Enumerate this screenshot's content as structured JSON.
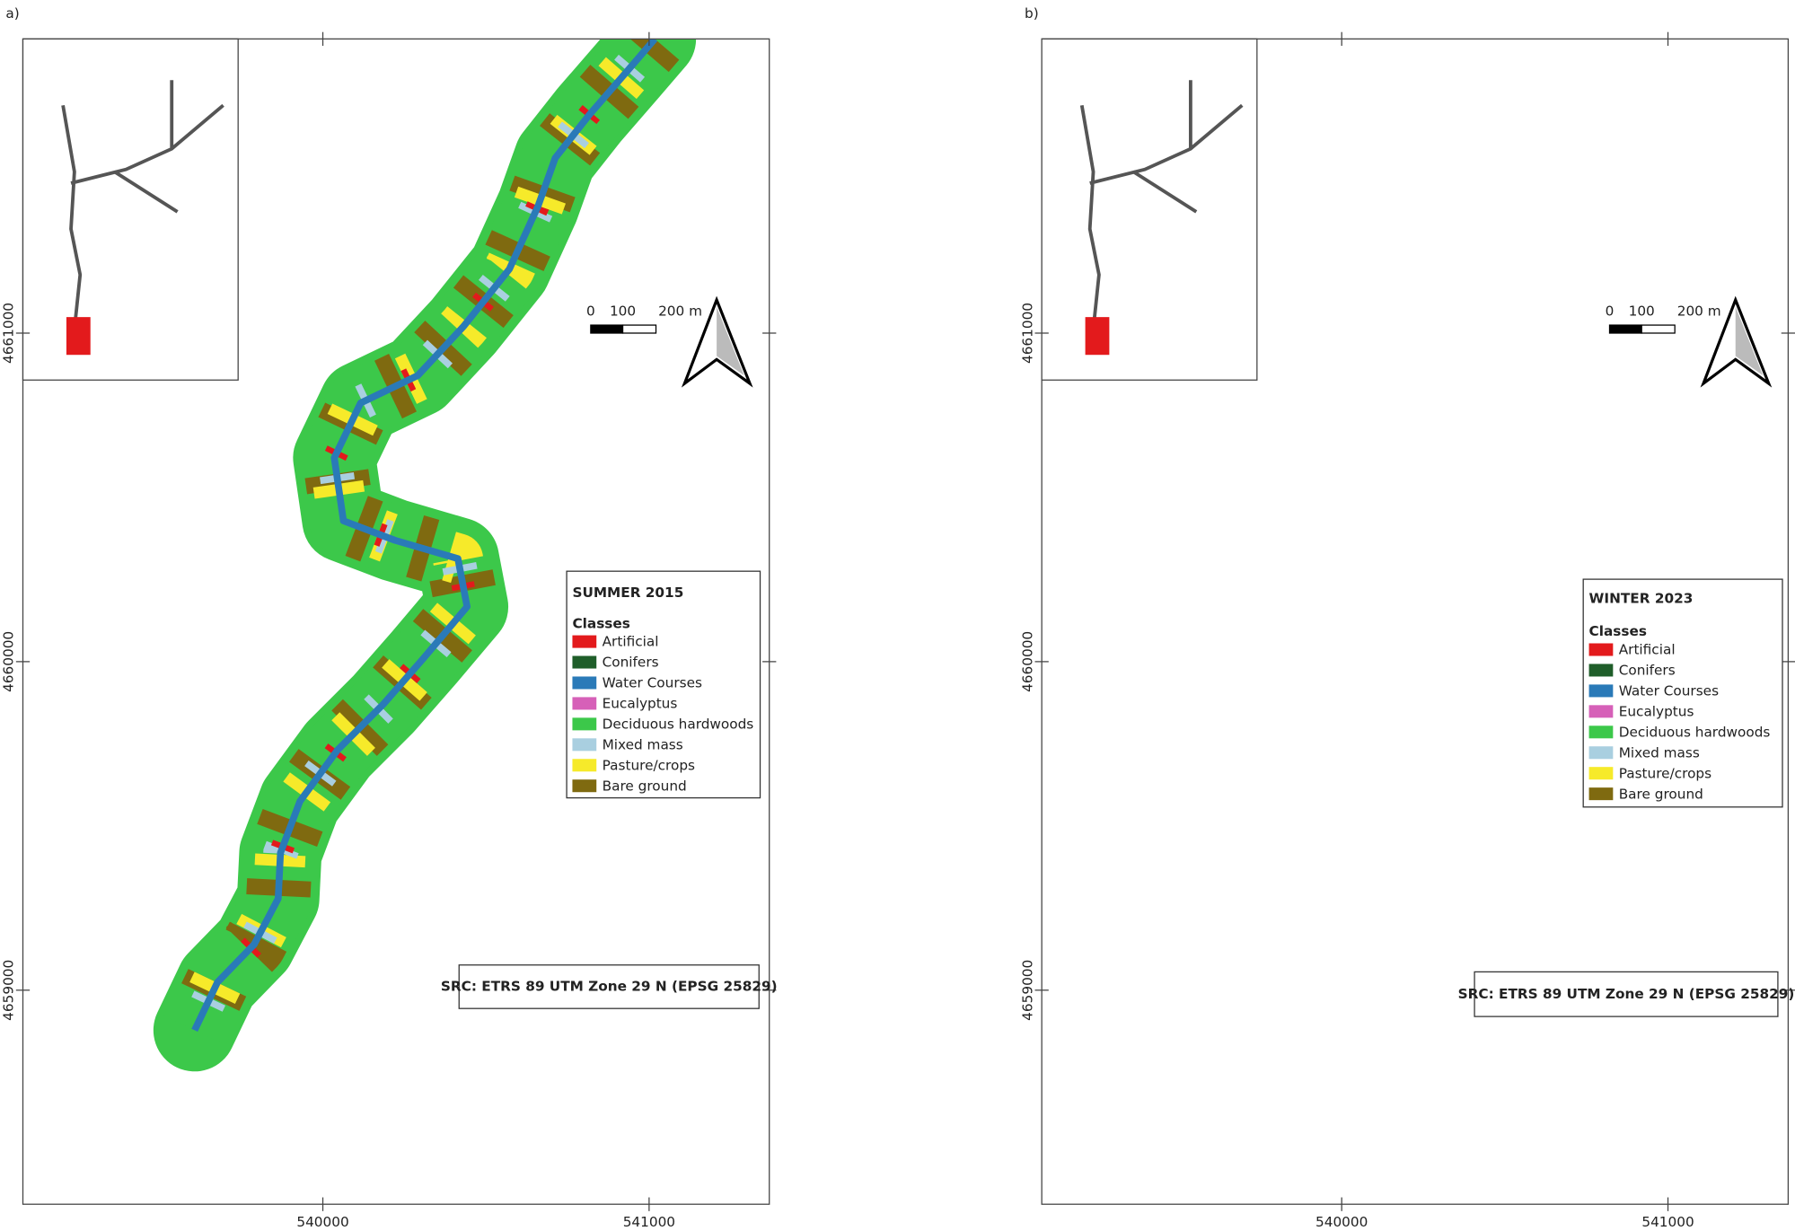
{
  "panels": [
    {
      "label": "a)",
      "title": "SUMMER 2015",
      "legend_heading": "Classes",
      "classes": [
        {
          "name": "Artificial",
          "color": "#e31a1c"
        },
        {
          "name": "Conifers",
          "color": "#1f5e2a"
        },
        {
          "name": "Water Courses",
          "color": "#2a7ab8"
        },
        {
          "name": "Eucalyptus",
          "color": "#d660b8"
        },
        {
          "name": "Deciduous hardwoods",
          "color": "#3cc84a"
        },
        {
          "name": "Mixed mass",
          "color": "#a9cfe0"
        },
        {
          "name": "Pasture/crops",
          "color": "#f6ea2a"
        },
        {
          "name": "Bare ground",
          "color": "#7f6a10"
        }
      ],
      "scale_labels": [
        "0",
        "100",
        "200 m"
      ],
      "crs": "SRC: ETRS 89 UTM Zone 29 N (EPSG 25829)",
      "x_ticks": [
        540000,
        541000
      ],
      "y_ticks": [
        4661000,
        4660000,
        4659000
      ]
    },
    {
      "label": "b)",
      "title": "WINTER 2023",
      "legend_heading": "Classes",
      "classes": [
        {
          "name": "Artificial",
          "color": "#e31a1c"
        },
        {
          "name": "Conifers",
          "color": "#1f5e2a"
        },
        {
          "name": "Water Courses",
          "color": "#2a7ab8"
        },
        {
          "name": "Eucalyptus",
          "color": "#d660b8"
        },
        {
          "name": "Deciduous hardwoods",
          "color": "#3cc84a"
        },
        {
          "name": "Mixed mass",
          "color": "#a9cfe0"
        },
        {
          "name": "Pasture/crops",
          "color": "#f6ea2a"
        },
        {
          "name": "Bare ground",
          "color": "#7f6a10"
        }
      ],
      "scale_labels": [
        "0",
        "100",
        "200 m"
      ],
      "crs": "SRC: ETRS 89 UTM Zone 29 N (EPSG 25829)",
      "x_ticks": [
        540000,
        541000
      ],
      "y_ticks": [
        4661000,
        4660000,
        4659000
      ]
    }
  ]
}
